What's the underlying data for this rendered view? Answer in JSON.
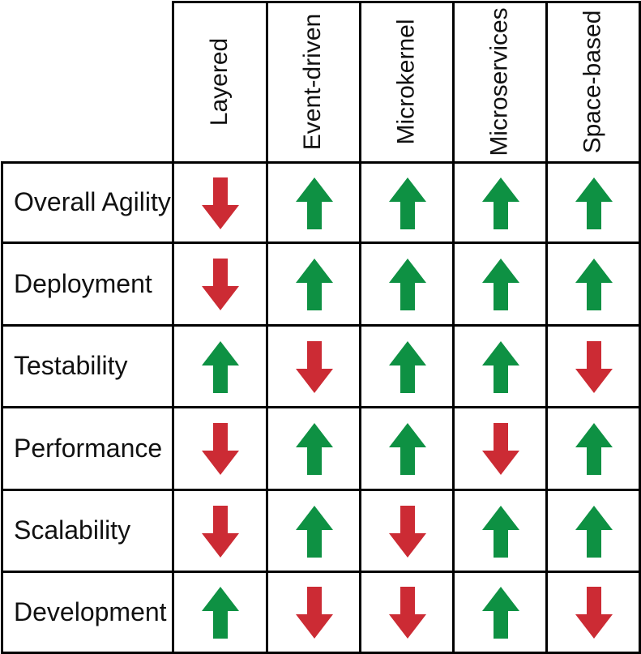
{
  "colors": {
    "up": "#0e9143",
    "down": "#cc2b34",
    "line": "#000000"
  },
  "columns": [
    "Layered",
    "Event-driven",
    "Microkernel",
    "Microservices",
    "Space-based"
  ],
  "rows": [
    {
      "label": "Overall Agility",
      "ratings": [
        "down",
        "up",
        "up",
        "up",
        "up"
      ]
    },
    {
      "label": "Deployment",
      "ratings": [
        "down",
        "up",
        "up",
        "up",
        "up"
      ]
    },
    {
      "label": "Testability",
      "ratings": [
        "up",
        "down",
        "up",
        "up",
        "down"
      ]
    },
    {
      "label": "Performance",
      "ratings": [
        "down",
        "up",
        "up",
        "down",
        "up"
      ]
    },
    {
      "label": "Scalability",
      "ratings": [
        "down",
        "up",
        "down",
        "up",
        "up"
      ]
    },
    {
      "label": "Development",
      "ratings": [
        "up",
        "down",
        "down",
        "up",
        "down"
      ]
    }
  ]
}
